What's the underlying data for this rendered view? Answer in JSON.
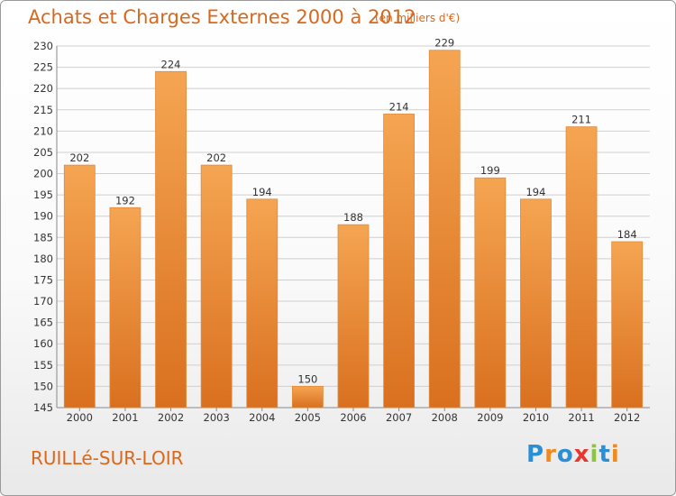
{
  "header": {
    "title": "Achats et Charges Externes 2000 à 2012",
    "unit": "(en milliers d'€)"
  },
  "footer": {
    "location": "RUILLé-SUR-LOIR",
    "logo_text": "Proxiti"
  },
  "colors": {
    "bar_light": "#f5a552",
    "bar_dark": "#d9701f",
    "bar_edge": "#e08a3a",
    "title": "#d9681c",
    "grid": "#cfcfcf",
    "axis": "#888888"
  },
  "chart_data": {
    "type": "bar",
    "title": "Achats et Charges Externes 2000 à 2012",
    "subtitle": "(en milliers d'€)",
    "xlabel": "",
    "ylabel": "",
    "categories": [
      "2000",
      "2001",
      "2002",
      "2003",
      "2004",
      "2005",
      "2006",
      "2007",
      "2008",
      "2009",
      "2010",
      "2011",
      "2012"
    ],
    "values": [
      202,
      192,
      224,
      202,
      194,
      150,
      188,
      214,
      229,
      199,
      194,
      211,
      184
    ],
    "ylim": [
      145,
      230
    ],
    "yticks": [
      145,
      150,
      155,
      160,
      165,
      170,
      175,
      180,
      185,
      190,
      195,
      200,
      205,
      210,
      215,
      220,
      225,
      230
    ],
    "grid": true,
    "legend": "none",
    "data_labels": true
  }
}
